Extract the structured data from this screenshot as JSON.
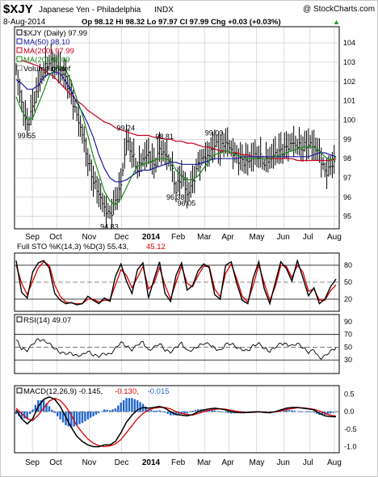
{
  "header": {
    "symbol": "$XJY",
    "name": "Japanese Yen - Philadelphia",
    "exchange": "INDX",
    "watermark": "@ StockCharts.com",
    "date": "8-Aug-2014",
    "quote": "Op 98.12  Hi 98.32  Lo 97.97  Cl 97.99  Chg +0.03 (+0.03%)",
    "quote_arrow": "▲"
  },
  "months": [
    "Sep",
    "Oct",
    "Nov",
    "Dec",
    "2014",
    "Feb",
    "Mar",
    "Apr",
    "May",
    "Jun",
    "Jul",
    "Aug"
  ],
  "colors": {
    "price": "#000000",
    "ma50": "#1a1aa8",
    "ma200": "#cc0022",
    "ma20": "#1a8a1a",
    "k": "#000000",
    "d": "#dd0000",
    "macd_signal": "#dd0000",
    "hist": "#2266cc",
    "grid": "#c8c8c8"
  },
  "chart_data": [
    {
      "type": "line",
      "panel": "price",
      "legend": [
        {
          "label": "$XJY (Daily) 97.99",
          "color": "#000000"
        },
        {
          "label": "MA(50) 98.10",
          "color": "#1a1aa8"
        },
        {
          "label": "MA(200) 97.99",
          "color": "#cc0022"
        },
        {
          "label": "MA(20) 98.09",
          "color": "#1a8a1a"
        },
        {
          "label": "Volume undef",
          "color": "#888888"
        }
      ],
      "yticks": [
        95,
        96,
        97,
        98,
        99,
        100,
        101,
        102,
        103,
        104
      ],
      "ylim": [
        94.4,
        104.8
      ],
      "x": [
        0,
        6,
        12,
        18,
        24,
        30,
        36,
        42,
        48,
        54,
        60,
        66,
        72,
        78,
        84,
        90,
        96,
        102,
        108,
        114,
        120,
        126,
        132,
        138,
        144,
        150,
        156,
        162,
        168,
        174,
        180,
        186,
        192,
        198,
        204,
        210,
        216,
        222,
        228,
        234,
        240,
        246,
        252,
        258,
        264,
        270,
        276,
        282,
        288,
        294,
        300,
        306,
        312,
        318,
        324,
        330,
        336,
        342,
        348
      ],
      "series": [
        {
          "name": "$XJY",
          "values": [
            102.6,
            100.8,
            99.6,
            100.6,
            101.8,
            102.6,
            103.1,
            102.8,
            102.6,
            102.1,
            101.2,
            100.2,
            99.3,
            97.9,
            96.9,
            96.2,
            95.4,
            95.0,
            95.7,
            96.6,
            99.0,
            98.3,
            97.5,
            98.0,
            98.2,
            97.5,
            98.4,
            98.2,
            97.8,
            96.4,
            97.2,
            96.1,
            96.7,
            97.6,
            98.0,
            98.2,
            98.8,
            98.5,
            98.9,
            98.4,
            98.0,
            97.8,
            97.8,
            98.1,
            98.2,
            97.8,
            98.0,
            98.2,
            98.3,
            98.5,
            98.8,
            98.7,
            98.6,
            98.8,
            98.6,
            98.2,
            97.2,
            97.5,
            97.99
          ]
        },
        {
          "name": "MA(50)",
          "values": [
            102.1,
            101.9,
            101.6,
            101.6,
            101.8,
            102.2,
            102.4,
            102.5,
            102.4,
            102.0,
            101.5,
            100.9,
            100.4,
            99.8,
            99.1,
            98.2,
            97.5,
            97.0,
            96.8,
            96.8,
            96.9,
            97.1,
            97.3,
            97.4,
            97.4,
            97.5,
            97.6,
            97.7,
            97.8,
            97.8,
            97.7,
            97.7,
            97.7,
            97.7,
            97.8,
            97.9,
            98.0,
            98.0,
            98.0,
            98.0,
            98.0,
            98.1,
            98.1,
            98.1,
            98.1,
            98.1,
            98.1,
            98.1,
            98.1,
            98.1,
            98.1,
            98.1,
            98.1,
            98.1,
            98.2,
            98.3,
            98.3,
            98.2,
            98.1
          ]
        },
        {
          "name": "MA(200)",
          "values": [
            103.2,
            103.1,
            103.0,
            102.9,
            102.8,
            102.6,
            102.4,
            102.2,
            101.9,
            101.6,
            101.3,
            101.0,
            100.8,
            100.5,
            100.3,
            100.1,
            99.9,
            99.8,
            99.6,
            99.5,
            99.4,
            99.3,
            99.2,
            99.2,
            99.2,
            99.1,
            99.1,
            99.0,
            99.0,
            98.9,
            98.9,
            98.8,
            98.8,
            98.7,
            98.6,
            98.6,
            98.5,
            98.4,
            98.4,
            98.3,
            98.3,
            98.2,
            98.2,
            98.1,
            98.1,
            98.1,
            98.0,
            98.0,
            98.0,
            98.0,
            98.0,
            97.9,
            97.9,
            97.9,
            97.9,
            97.9,
            97.9,
            97.9,
            97.99
          ]
        },
        {
          "name": "MA(20)",
          "values": [
            101.2,
            100.5,
            100.0,
            100.1,
            100.8,
            101.5,
            102.3,
            102.6,
            102.8,
            102.6,
            102.0,
            101.1,
            100.3,
            99.2,
            98.1,
            97.2,
            96.3,
            95.8,
            95.6,
            95.9,
            96.5,
            97.1,
            97.6,
            97.7,
            97.8,
            97.9,
            98.0,
            98.0,
            97.9,
            97.4,
            97.1,
            96.9,
            96.9,
            97.1,
            97.5,
            97.9,
            98.2,
            98.3,
            98.4,
            98.3,
            98.2,
            98.1,
            98.0,
            98.0,
            98.0,
            98.0,
            98.0,
            98.1,
            98.2,
            98.3,
            98.4,
            98.5,
            98.6,
            98.6,
            98.6,
            98.4,
            98.1,
            97.9,
            98.09
          ]
        }
      ],
      "annotations": [
        {
          "text": "99.55",
          "x": 12,
          "y": 99.55,
          "pos": "below"
        },
        {
          "text": "99.24",
          "x": 120,
          "y": 99.24,
          "pos": "above"
        },
        {
          "text": "98.81",
          "x": 162,
          "y": 98.81,
          "pos": "above"
        },
        {
          "text": "99.00",
          "x": 216,
          "y": 99.0,
          "pos": "above"
        },
        {
          "text": "96.38",
          "x": 174,
          "y": 96.38,
          "pos": "below"
        },
        {
          "text": "96.05",
          "x": 186,
          "y": 96.05,
          "pos": "below"
        },
        {
          "text": "94.83",
          "x": 102,
          "y": 94.83,
          "pos": "below"
        }
      ]
    },
    {
      "type": "line",
      "panel": "stochastic",
      "legend": [
        {
          "label": "Full STO %K(14,3) %D(3) 55.43,",
          "color": "#000000"
        },
        {
          "label": "45.12",
          "color": "#dd0000"
        }
      ],
      "yticks": [
        20,
        50,
        80
      ],
      "ylim": [
        0,
        100
      ],
      "x_step": 6,
      "series": [
        {
          "name": "%K",
          "values": [
            88,
            32,
            22,
            68,
            84,
            88,
            75,
            30,
            18,
            12,
            14,
            10,
            12,
            25,
            18,
            12,
            22,
            16,
            60,
            82,
            52,
            30,
            72,
            84,
            22,
            55,
            86,
            30,
            16,
            62,
            84,
            36,
            44,
            70,
            82,
            76,
            28,
            20,
            80,
            86,
            48,
            18,
            12,
            58,
            86,
            38,
            12,
            50,
            86,
            74,
            52,
            88,
            58,
            26,
            40,
            12,
            20,
            42,
            55.43
          ]
        },
        {
          "name": "%D",
          "values": [
            80,
            48,
            28,
            52,
            75,
            86,
            80,
            45,
            25,
            15,
            13,
            12,
            12,
            20,
            20,
            15,
            18,
            18,
            45,
            72,
            62,
            40,
            58,
            78,
            38,
            48,
            76,
            45,
            20,
            50,
            78,
            48,
            42,
            62,
            78,
            78,
            38,
            24,
            66,
            82,
            56,
            25,
            15,
            45,
            80,
            48,
            18,
            42,
            80,
            78,
            58,
            80,
            68,
            34,
            38,
            18,
            18,
            35,
            45.12
          ]
        }
      ]
    },
    {
      "type": "line",
      "panel": "rsi",
      "legend": [
        {
          "label": "RSI(14) 49.07",
          "color": "#000000"
        }
      ],
      "yticks": [
        30,
        50,
        70,
        90
      ],
      "ylim": [
        10,
        100
      ],
      "x_step": 6,
      "series": [
        {
          "name": "RSI",
          "values": [
            62,
            48,
            45,
            55,
            62,
            60,
            56,
            48,
            42,
            40,
            40,
            36,
            38,
            44,
            38,
            36,
            40,
            38,
            48,
            58,
            52,
            46,
            54,
            58,
            44,
            50,
            56,
            46,
            42,
            50,
            56,
            44,
            46,
            52,
            56,
            55,
            48,
            44,
            55,
            56,
            50,
            46,
            44,
            52,
            56,
            48,
            44,
            50,
            56,
            54,
            52,
            56,
            50,
            42,
            46,
            32,
            36,
            44,
            49.07
          ]
        }
      ]
    },
    {
      "type": "line",
      "panel": "macd",
      "legend": [
        {
          "label": "MACD(12,26,9) -0.145,",
          "color": "#000000"
        },
        {
          "label": "-0.130,",
          "color": "#dd0000"
        },
        {
          "label": "-0.015",
          "color": "#2266cc"
        }
      ],
      "yticks": [
        -1.0,
        -0.5,
        0.0,
        0.5
      ],
      "ylim": [
        -1.15,
        0.72
      ],
      "x_step": 6,
      "series": [
        {
          "name": "MACD",
          "values": [
            0.05,
            -0.2,
            -0.35,
            -0.2,
            0.15,
            0.35,
            0.42,
            0.35,
            0.15,
            -0.15,
            -0.45,
            -0.7,
            -0.85,
            -0.95,
            -1.0,
            -1.0,
            -0.95,
            -0.95,
            -0.85,
            -0.6,
            -0.3,
            -0.1,
            0.05,
            0.12,
            0.1,
            0.12,
            0.15,
            0.1,
            0.0,
            -0.08,
            -0.1,
            -0.12,
            -0.08,
            0.0,
            0.05,
            0.08,
            0.1,
            0.08,
            0.05,
            0.0,
            -0.02,
            -0.03,
            -0.02,
            -0.01,
            0.0,
            -0.02,
            -0.03,
            0.0,
            0.05,
            0.1,
            0.12,
            0.12,
            0.1,
            0.08,
            0.05,
            -0.05,
            -0.12,
            -0.14,
            -0.145
          ]
        },
        {
          "name": "Signal",
          "values": [
            0.1,
            -0.05,
            -0.2,
            -0.25,
            -0.1,
            0.1,
            0.3,
            0.38,
            0.32,
            0.15,
            -0.1,
            -0.4,
            -0.6,
            -0.78,
            -0.9,
            -0.97,
            -1.0,
            -0.98,
            -0.92,
            -0.8,
            -0.6,
            -0.4,
            -0.2,
            -0.05,
            0.05,
            0.1,
            0.12,
            0.12,
            0.08,
            0.0,
            -0.05,
            -0.08,
            -0.1,
            -0.05,
            0.0,
            0.04,
            0.07,
            0.08,
            0.07,
            0.04,
            0.01,
            -0.01,
            -0.02,
            -0.02,
            -0.01,
            -0.01,
            -0.02,
            -0.01,
            0.02,
            0.06,
            0.09,
            0.11,
            0.11,
            0.09,
            0.07,
            0.02,
            -0.05,
            -0.1,
            -0.13
          ]
        }
      ]
    }
  ]
}
